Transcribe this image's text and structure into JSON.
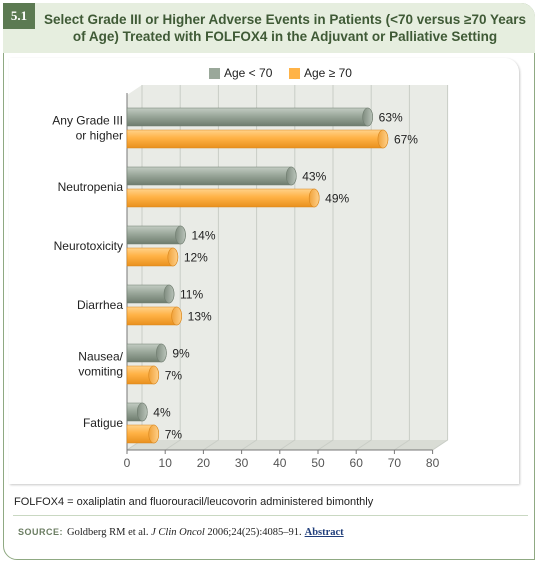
{
  "badge": "5.1",
  "title": "Select Grade III or Higher Adverse Events in Patients (<70 versus ≥70 Years of Age) Treated with FOLFOX4 in the Adjuvant or Palliative Setting",
  "footnote": "FOLFOX4 = oxaliplatin and fluorouracil/leucovorin administered bimonthly",
  "source": {
    "label": "SOURCE:",
    "citation_pre": "Goldberg RM et al. ",
    "journal": "J Clin Oncol",
    "citation_post": " 2006;24(25):4085–91.",
    "abstract_link": "Abstract"
  },
  "colors": {
    "age_lt_70": "#9aa89a",
    "age_ge_70": "#ffb347"
  },
  "chart_data": {
    "type": "bar",
    "orientation": "horizontal",
    "categories": [
      [
        "Any Grade III",
        "or higher"
      ],
      [
        "Neutropenia"
      ],
      [
        "Neurotoxicity"
      ],
      [
        "Diarrhea"
      ],
      [
        "Nausea/",
        "vomiting"
      ],
      [
        "Fatigue"
      ]
    ],
    "series": [
      {
        "name": "Age < 70",
        "values": [
          63,
          43,
          14,
          11,
          9,
          4
        ],
        "labels": [
          "63%",
          "43%",
          "14%",
          "11%",
          "9%",
          "4%"
        ]
      },
      {
        "name": "Age ≥ 70",
        "values": [
          67,
          49,
          12,
          13,
          7,
          7
        ],
        "labels": [
          "67%",
          "49%",
          "12%",
          "13%",
          "7%",
          "7%"
        ]
      }
    ],
    "xlim": [
      0,
      80
    ],
    "xticks": [
      0,
      10,
      20,
      30,
      40,
      50,
      60,
      70,
      80
    ],
    "grid": true,
    "legend_position": "top"
  }
}
